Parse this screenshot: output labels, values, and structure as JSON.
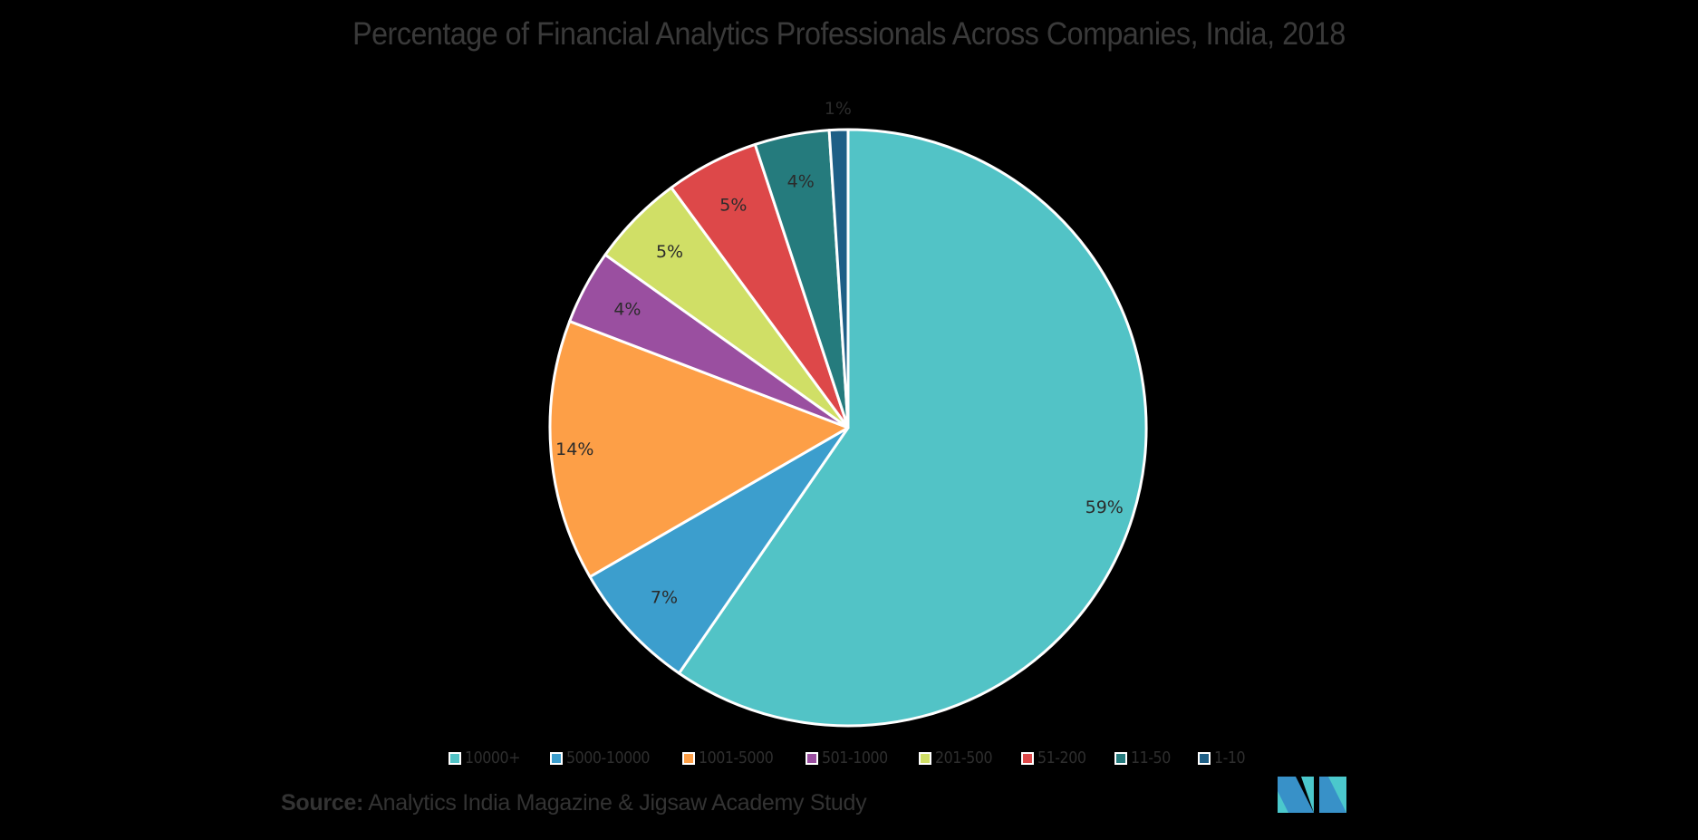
{
  "chart_data": {
    "type": "pie",
    "title": "Percentage of Financial Analytics Professionals Across Companies, India, 2018",
    "categories": [
      "10000+",
      "5000-10000",
      "1001-5000",
      "501-1000",
      "201-500",
      "51-200",
      "11-50",
      "1-10"
    ],
    "values": [
      59,
      7,
      14,
      4,
      5,
      5,
      4,
      1
    ],
    "labels": [
      "59%",
      "7%",
      "14%",
      "4%",
      "5%",
      "5%",
      "4%",
      "1%"
    ],
    "colors": [
      "#52c3c6",
      "#3c9ecd",
      "#fd9f47",
      "#9a4fa0",
      "#d0df66",
      "#dd4849",
      "#257b7d",
      "#1e5f86"
    ],
    "start_angle_deg": 0,
    "direction": "clockwise",
    "legend_position": "bottom",
    "unit": "%"
  },
  "title": "Percentage of Financial Analytics Professionals Across Companies, India, 2018",
  "legend": [
    {
      "label": "10000+",
      "color": "#52c3c6"
    },
    {
      "label": "5000-10000",
      "color": "#3c9ecd"
    },
    {
      "label": "1001-5000",
      "color": "#fd9f47"
    },
    {
      "label": "501-1000",
      "color": "#9a4fa0"
    },
    {
      "label": "201-500",
      "color": "#d0df66"
    },
    {
      "label": "51-200",
      "color": "#dd4849"
    },
    {
      "label": "11-50",
      "color": "#257b7d"
    },
    {
      "label": "1-10",
      "color": "#1e5f86"
    }
  ],
  "source": {
    "prefix": "Source:",
    "text": " Analytics India Magazine & Jigsaw Academy Study"
  },
  "logo": {
    "name": "mordor-intelligence-logo",
    "colors": [
      "#3891c8",
      "#4bc8cc"
    ]
  }
}
